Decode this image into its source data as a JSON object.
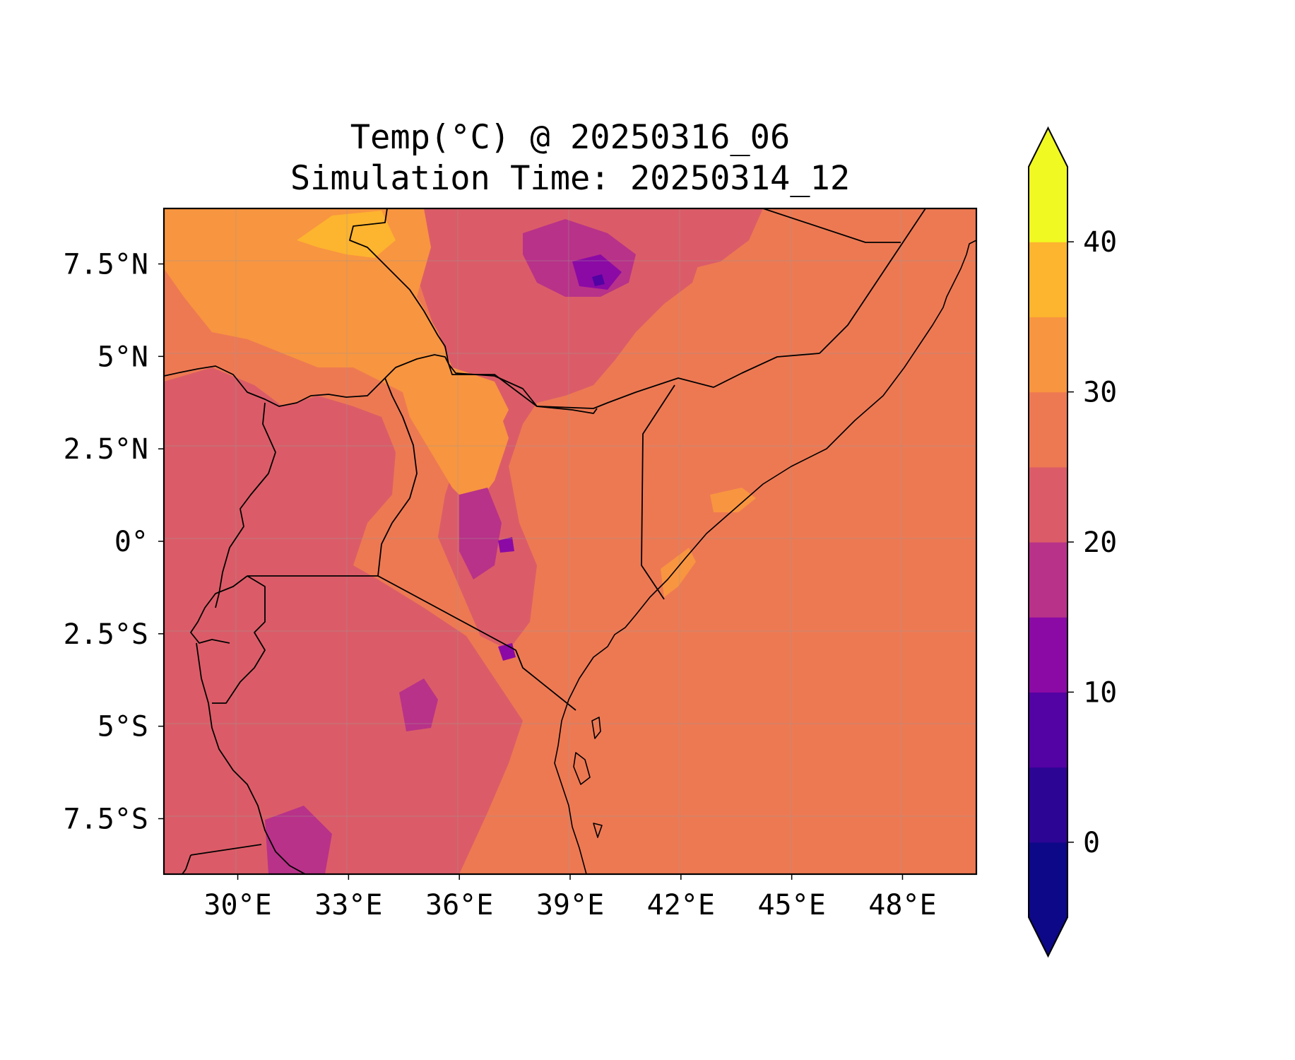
{
  "title": {
    "line1": "Temp(°C) @ 20250316_06",
    "line2": "Simulation Time: 20250314_12"
  },
  "map": {
    "lon_ticks": [
      "30°E",
      "33°E",
      "36°E",
      "39°E",
      "42°E",
      "45°E",
      "48°E"
    ],
    "lat_ticks": [
      "7.5°N",
      "5°N",
      "2.5°N",
      "0°",
      "2.5°S",
      "5°S",
      "7.5°S"
    ],
    "gridlines": true
  },
  "colorbar": {
    "ticks": [
      "40",
      "30",
      "20",
      "10",
      "0"
    ],
    "extend": "both"
  },
  "chart_data": {
    "type": "heatmap",
    "variable": "Temp(°C)",
    "lon_range": [
      28,
      50
    ],
    "lat_range": [
      -9,
      9
    ],
    "levels": [
      -5,
      0,
      5,
      10,
      15,
      20,
      25,
      30,
      35,
      40,
      45
    ],
    "level_colors": [
      "#0d0887",
      "#2c0594",
      "#5302a3",
      "#8b0aa5",
      "#b83289",
      "#db5c68",
      "#ed7953",
      "#f89540",
      "#fdb42f",
      "#f0f921"
    ],
    "under_color": "#0d0887",
    "over_color": "#f0f921"
  }
}
